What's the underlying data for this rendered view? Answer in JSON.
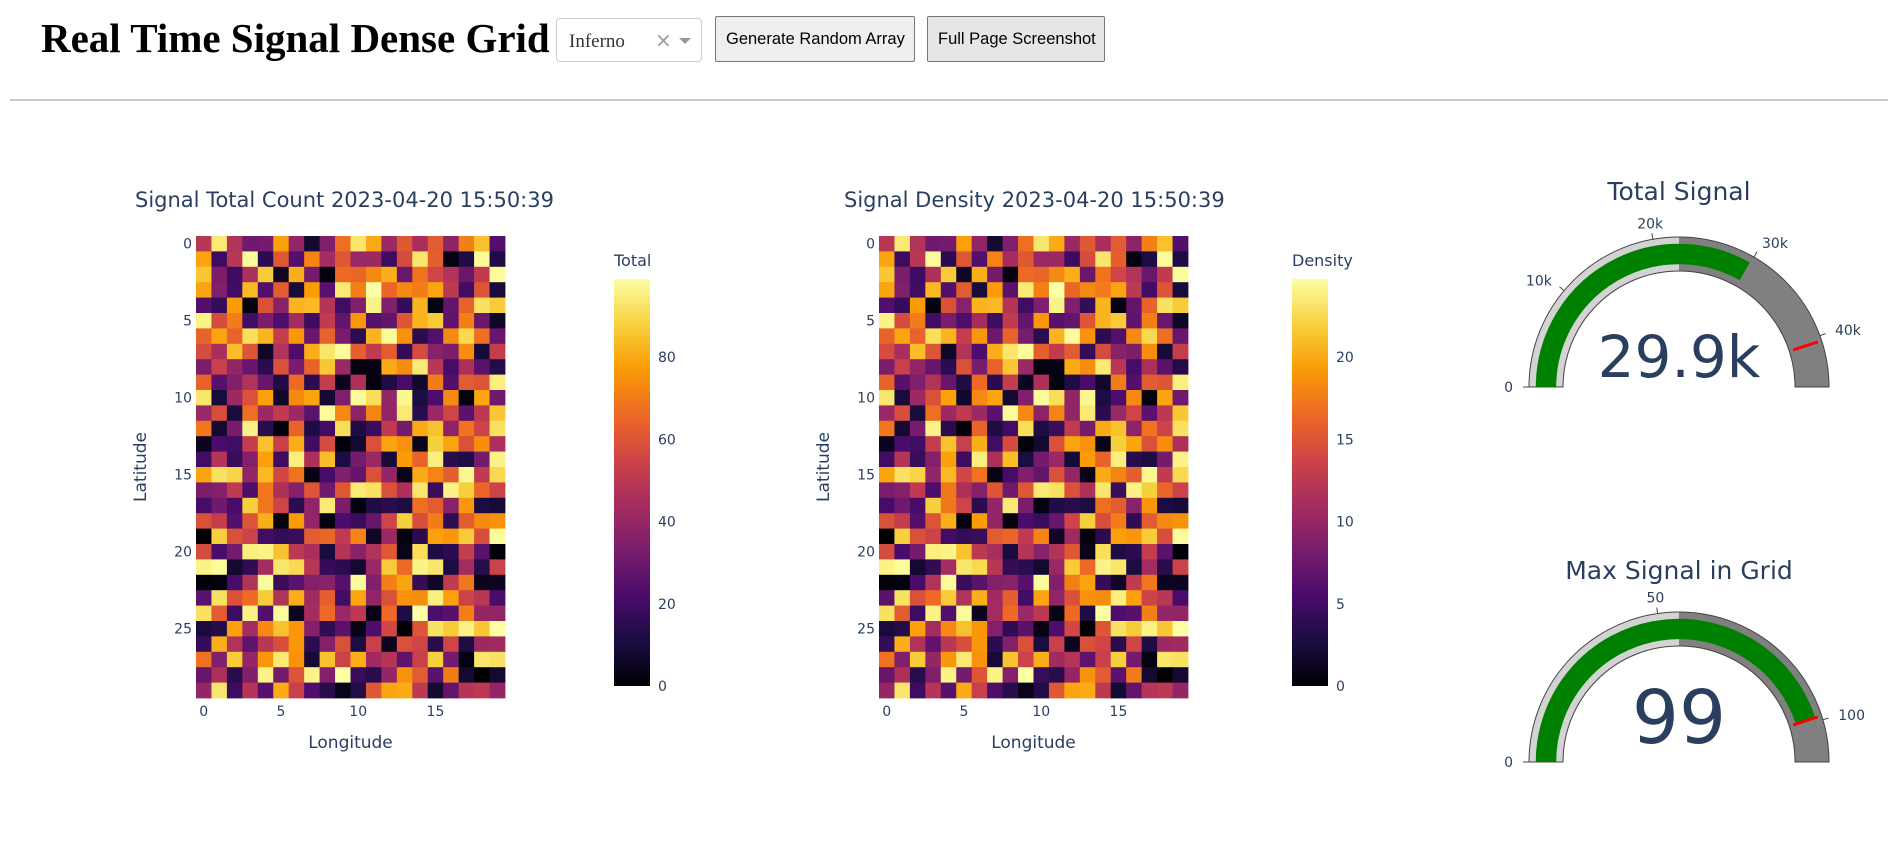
{
  "app": {
    "title": "Real Time Signal Dense Grid",
    "colormap_select": {
      "value": "Inferno",
      "clear_glyph": "×",
      "arrow_icon": "chevron-down-icon"
    },
    "buttons": {
      "generate": "Generate Random Array",
      "screenshot": "Full Page Screenshot"
    }
  },
  "colors": {
    "text": "#2a3f5f",
    "gauge_bar": "#008000",
    "gauge_steps": [
      "#d3d3d3",
      "#808080"
    ],
    "threshold": "#ff0000"
  },
  "chart_data": [
    {
      "type": "heatmap",
      "title": "Signal Total Count 2023-04-20 15:50:39",
      "xlabel": "Longitude",
      "ylabel": "Latitude",
      "x_ticks": [
        "0",
        "5",
        "10",
        "15"
      ],
      "y_ticks": [
        "0",
        "5",
        "10",
        "15",
        "20",
        "25"
      ],
      "rows": 30,
      "cols": 20,
      "colorscale": "Inferno",
      "colorbar": {
        "title": "Total",
        "ticks": [
          "0",
          "20",
          "40",
          "60",
          "80"
        ],
        "range": [
          0,
          99
        ]
      },
      "zmax": 99,
      "seed": 13579
    },
    {
      "type": "heatmap",
      "title": "Signal Density 2023-04-20 15:50:39",
      "xlabel": "Longitude",
      "ylabel": "Latitude",
      "x_ticks": [
        "0",
        "5",
        "10",
        "15"
      ],
      "y_ticks": [
        "0",
        "5",
        "10",
        "15",
        "20",
        "25"
      ],
      "rows": 30,
      "cols": 20,
      "colorscale": "Inferno",
      "colorbar": {
        "title": "Density",
        "ticks": [
          "0",
          "5",
          "10",
          "15",
          "20"
        ],
        "range": [
          0,
          24.75
        ]
      },
      "zmax": 24.75,
      "seed": 13579
    },
    {
      "type": "gauge",
      "title": "Total Signal",
      "value": 29900,
      "display": "29.9k",
      "range": [
        0,
        45000
      ],
      "ticks": [
        "0",
        "10k",
        "20k",
        "30k",
        "40k"
      ],
      "tick_values": [
        0,
        10000,
        20000,
        30000,
        40000
      ],
      "steps": [
        [
          0,
          22500
        ],
        [
          22500,
          45000
        ]
      ],
      "threshold": 40500
    },
    {
      "type": "gauge",
      "title": "Max Signal in Grid",
      "value": 99,
      "display": "99",
      "range": [
        0,
        110
      ],
      "ticks": [
        "0",
        "50",
        "100"
      ],
      "tick_values": [
        0,
        50,
        100
      ],
      "steps": [
        [
          0,
          55
        ],
        [
          55,
          110
        ]
      ],
      "threshold": 99
    }
  ]
}
